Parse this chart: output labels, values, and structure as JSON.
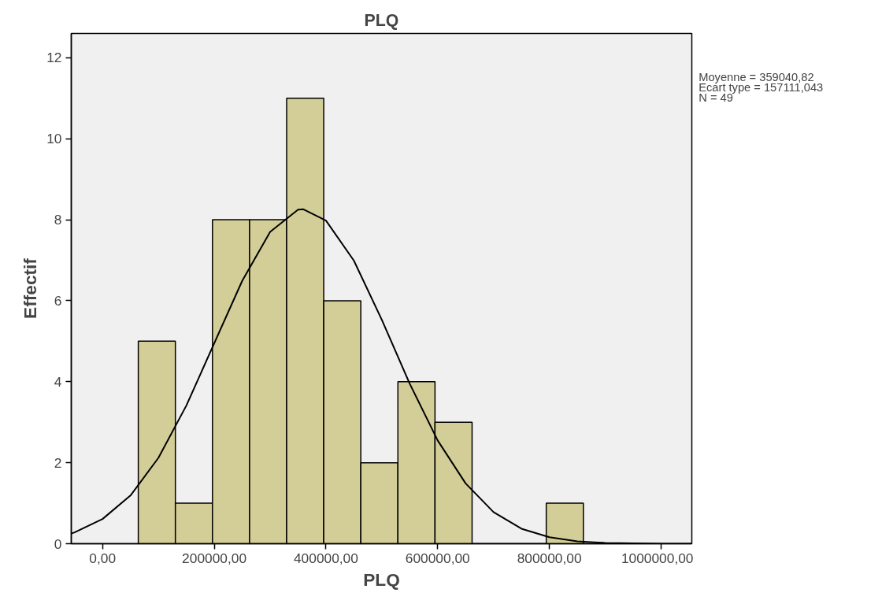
{
  "chart_data": {
    "type": "histogram",
    "title": "PLQ",
    "xlabel": "PLQ",
    "ylabel": "Effectif",
    "bins": [
      64000,
      130400,
      196800,
      263200,
      329600,
      396000,
      462400,
      528800,
      595200,
      661600,
      728000,
      794400,
      860800
    ],
    "values": [
      5,
      1,
      8,
      8,
      11,
      6,
      2,
      4,
      3,
      0,
      0,
      1
    ],
    "color": "#d3ce97",
    "series": [
      {
        "type": "line",
        "color": "#000000",
        "x": [
          -56000,
          -50000,
          0,
          50000,
          100000,
          150000,
          200000,
          250000,
          300000,
          350000,
          359041,
          400000,
          450000,
          500000,
          550000,
          600000,
          650000,
          700000,
          750000,
          800000,
          850000,
          900000,
          950000,
          1000000,
          1055000
        ],
        "values": [
          0.25,
          0.28,
          0.61,
          1.19,
          2.12,
          3.41,
          4.95,
          6.49,
          7.7,
          8.25,
          8.26,
          7.98,
          6.99,
          5.53,
          3.95,
          2.55,
          1.49,
          0.78,
          0.37,
          0.16,
          0.06,
          0.02,
          0.01,
          0.0,
          0.0
        ]
      }
    ],
    "xlim": [
      -56000,
      1055000
    ],
    "xticks": [
      {
        "value": 0,
        "label": "0,00"
      },
      {
        "value": 200000,
        "label": "200000,00"
      },
      {
        "value": 400000,
        "label": "400000,00"
      },
      {
        "value": 600000,
        "label": "600000,00"
      },
      {
        "value": 800000,
        "label": "800000,00"
      },
      {
        "value": 1000000,
        "label": "1000000,00"
      }
    ],
    "ylim": [
      0,
      12.6
    ],
    "yticks": [
      0,
      2,
      4,
      6,
      8,
      10,
      12
    ],
    "annotations": [
      "Moyenne = 359040,82",
      "Ecart type = 157111,043",
      "N = 49"
    ],
    "grid": false
  }
}
